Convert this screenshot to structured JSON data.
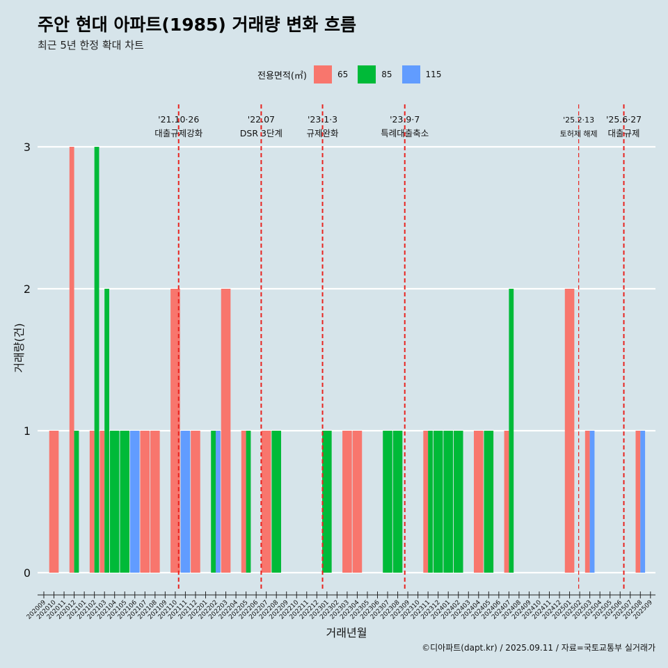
{
  "title": "주안 현대 아파트(1985) 거래량 변화 흐름",
  "subtitle": "최근 5년 한정 확대 차트",
  "caption": "©디아파트(dapt.kr) / 2025.09.11 / 자료=국토교통부 실거래가",
  "legend": {
    "title": "전용면적(㎡)",
    "items": [
      {
        "label": "65",
        "color": "#f8766d"
      },
      {
        "label": "85",
        "color": "#00ba38"
      },
      {
        "label": "115",
        "color": "#619cff"
      }
    ]
  },
  "chart_data": {
    "type": "bar",
    "xlabel": "거래년월",
    "ylabel": "거래량(건)",
    "ylim": [
      0,
      3
    ],
    "yticks": [
      0,
      1,
      2,
      3
    ],
    "categories": [
      "202009",
      "202010",
      "202011",
      "202012",
      "202101",
      "202102",
      "202103",
      "202104",
      "202105",
      "202106",
      "202107",
      "202108",
      "202109",
      "202110",
      "202111",
      "202112",
      "202201",
      "202202",
      "202203",
      "202204",
      "202205",
      "202206",
      "202207",
      "202208",
      "202209",
      "202210",
      "202211",
      "202212",
      "202301",
      "202302",
      "202303",
      "202304",
      "202305",
      "202306",
      "202307",
      "202308",
      "202309",
      "202310",
      "202311",
      "202312",
      "202401",
      "202402",
      "202403",
      "202404",
      "202405",
      "202406",
      "202407",
      "202408",
      "202409",
      "202410",
      "202411",
      "202412",
      "202501",
      "202502",
      "202503",
      "202504",
      "202505",
      "202506",
      "202507",
      "202508",
      "202509"
    ],
    "months_of_data": [
      "2020-09",
      "2020-10",
      "2020-11",
      "2020-12",
      "2021-01",
      "2021-02",
      "2021-03",
      "2021-04",
      "2021-05",
      "2021-06",
      "2021-07",
      "2021-08",
      "2021-09",
      "2021-10",
      "2021-11",
      "2021-12",
      "2022-01",
      "2022-02",
      "2022-03",
      "2022-04",
      "2022-05",
      "2022-06",
      "2022-07",
      "2022-08",
      "2022-09",
      "2022-10",
      "2022-11",
      "2022-12",
      "2023-01",
      "2023-02",
      "2023-03",
      "2023-04",
      "2023-05",
      "2023-06",
      "2023-07",
      "2023-08",
      "2023-09",
      "2023-10",
      "2023-11",
      "2023-12",
      "2024-01",
      "2024-02",
      "2024-03",
      "2024-04",
      "2024-05",
      "2024-06",
      "2024-07",
      "2024-08",
      "2024-09",
      "2024-10",
      "2024-11",
      "2024-12",
      "2025-01",
      "2025-02",
      "2025-03",
      "2025-04",
      "2025-05",
      "2025-06",
      "2025-07",
      "2025-08",
      "2025-09"
    ],
    "groups": [
      {
        "month": "202010",
        "bars": [
          {
            "series": "65",
            "value": 1
          }
        ]
      },
      {
        "month": "202012",
        "bars": [
          {
            "series": "65",
            "value": 3
          },
          {
            "series": "85",
            "value": 1
          }
        ]
      },
      {
        "month": "202102",
        "bars": [
          {
            "series": "65",
            "value": 1
          },
          {
            "series": "85",
            "value": 3
          }
        ]
      },
      {
        "month": "202103",
        "bars": [
          {
            "series": "65",
            "value": 1
          },
          {
            "series": "85",
            "value": 2
          }
        ]
      },
      {
        "month": "202104",
        "bars": [
          {
            "series": "85",
            "value": 1
          }
        ]
      },
      {
        "month": "202105",
        "bars": [
          {
            "series": "85",
            "value": 1
          }
        ]
      },
      {
        "month": "202106",
        "bars": [
          {
            "series": "115",
            "value": 1
          }
        ]
      },
      {
        "month": "202107",
        "bars": [
          {
            "series": "65",
            "value": 1
          }
        ]
      },
      {
        "month": "202108",
        "bars": [
          {
            "series": "65",
            "value": 1
          }
        ]
      },
      {
        "month": "202110",
        "bars": [
          {
            "series": "65",
            "value": 2
          }
        ]
      },
      {
        "month": "202111",
        "bars": [
          {
            "series": "115",
            "value": 1
          }
        ]
      },
      {
        "month": "202112",
        "bars": [
          {
            "series": "65",
            "value": 1
          }
        ]
      },
      {
        "month": "202202",
        "bars": [
          {
            "series": "85",
            "value": 1
          },
          {
            "series": "115",
            "value": 1
          }
        ]
      },
      {
        "month": "202203",
        "bars": [
          {
            "series": "65",
            "value": 2
          }
        ]
      },
      {
        "month": "202205",
        "bars": [
          {
            "series": "65",
            "value": 1
          },
          {
            "series": "85",
            "value": 1
          }
        ]
      },
      {
        "month": "202207",
        "bars": [
          {
            "series": "65",
            "value": 1
          }
        ]
      },
      {
        "month": "202208",
        "bars": [
          {
            "series": "85",
            "value": 1
          }
        ]
      },
      {
        "month": "202301",
        "bars": [
          {
            "series": "85",
            "value": 1
          }
        ]
      },
      {
        "month": "202303",
        "bars": [
          {
            "series": "65",
            "value": 1
          }
        ]
      },
      {
        "month": "202304",
        "bars": [
          {
            "series": "65",
            "value": 1
          }
        ]
      },
      {
        "month": "202307",
        "bars": [
          {
            "series": "85",
            "value": 1
          }
        ]
      },
      {
        "month": "202308",
        "bars": [
          {
            "series": "85",
            "value": 1
          }
        ]
      },
      {
        "month": "202311",
        "bars": [
          {
            "series": "65",
            "value": 1
          },
          {
            "series": "85",
            "value": 1
          }
        ]
      },
      {
        "month": "202312",
        "bars": [
          {
            "series": "85",
            "value": 1
          }
        ]
      },
      {
        "month": "202401",
        "bars": [
          {
            "series": "85",
            "value": 1
          }
        ]
      },
      {
        "month": "202402",
        "bars": [
          {
            "series": "85",
            "value": 1
          }
        ]
      },
      {
        "month": "202404",
        "bars": [
          {
            "series": "65",
            "value": 1
          }
        ]
      },
      {
        "month": "202405",
        "bars": [
          {
            "series": "85",
            "value": 1
          }
        ]
      },
      {
        "month": "202407",
        "bars": [
          {
            "series": "65",
            "value": 1
          },
          {
            "series": "85",
            "value": 2
          }
        ]
      },
      {
        "month": "202501",
        "bars": [
          {
            "series": "65",
            "value": 2
          }
        ]
      },
      {
        "month": "202503",
        "bars": [
          {
            "series": "65",
            "value": 1
          },
          {
            "series": "115",
            "value": 1
          }
        ]
      },
      {
        "month": "202508",
        "bars": [
          {
            "series": "65",
            "value": 1
          },
          {
            "series": "115",
            "value": 1
          }
        ]
      }
    ],
    "events": [
      {
        "date": "2021-10-26",
        "line1": "'21.10·26",
        "line2": "대출규제강화",
        "small": false
      },
      {
        "date": "2022-07-01",
        "line1": "'22.07",
        "line2": "DSR 3단계",
        "small": false
      },
      {
        "date": "2023-01-03",
        "line1": "'23.1·3",
        "line2": "규제완화",
        "small": false
      },
      {
        "date": "2023-09-07",
        "line1": "'23.9·7",
        "line2": "특례대출축소",
        "small": false
      },
      {
        "date": "2025-02-13",
        "line1": "'25.2·13",
        "line2": "토허제 해제",
        "small": true
      },
      {
        "date": "2025-06-27",
        "line1": "'25.6·27",
        "line2": "대출규제",
        "small": false
      }
    ]
  }
}
